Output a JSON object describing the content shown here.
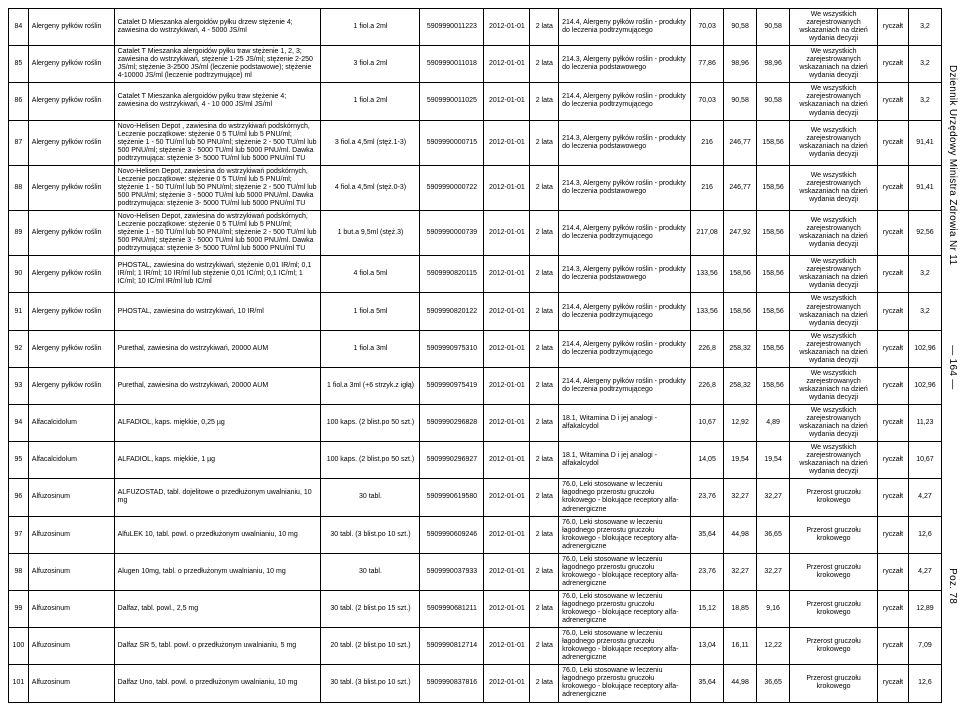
{
  "side": {
    "journal": "Dziennik Urzędowy Ministra Zdrowia Nr 11",
    "page": "— 164 —",
    "poz": "Poz. 78"
  },
  "note_std": "We wszystkich zarejestrowanych wskazaniach na dzień wydania decyzji",
  "note_prostate": "Przerost gruczołu krokowego",
  "ryczalt": "ryczałt",
  "rows": [
    {
      "n": "84",
      "cat": "Alergeny pyłków roślin",
      "desc": "Catalet D Mieszanka alergoidów pyłku drzew stężenie 4; zawiesina do wstrzykiwań, 4 - 5000 JS/ml",
      "form": "1 fiol.a 2ml",
      "code": "5909990011223",
      "date": "2012-01-01",
      "per": "2 lata",
      "ind": "214.4, Alergeny pyłków roślin - produkty do leczenia podtrzymującego",
      "a": "70,03",
      "b": "90,58",
      "c": "90,58",
      "note": "std",
      "r": "ryczałt",
      "v": "3,2"
    },
    {
      "n": "85",
      "cat": "Alergeny pyłków roślin",
      "desc": "Catalet T Mieszanka alergoidów pyłku traw stężenie 1, 2, 3; zawiesina do wstrzykiwań, stężenie 1-25 JS/ml; stężenie 2-250 JS/ml; stężenie 3-2500 JS/ml (leczenie podstawowe); stężenie 4-10000 JS/ml (leczenie podtrzymujące) ml",
      "form": "3 fiol.a 2ml",
      "code": "5909990011018",
      "date": "2012-01-01",
      "per": "2 lata",
      "ind": "214.3, Alergeny pyłków roślin - produkty do leczenia podstawowego",
      "a": "77,86",
      "b": "98,96",
      "c": "98,96",
      "note": "std",
      "r": "ryczałt",
      "v": "3,2"
    },
    {
      "n": "86",
      "cat": "Alergeny pyłków roślin",
      "desc": "Catalet T Mieszanka alergoidów pyłku traw stężenie 4; zawiesina do wstrzykiwań, 4 - 10 000 JS/ml JS/ml",
      "form": "1 fiol.a 2ml",
      "code": "5909990011025",
      "date": "2012-01-01",
      "per": "2 lata",
      "ind": "214.4, Alergeny pyłków roślin - produkty do leczenia podtrzymującego",
      "a": "70,03",
      "b": "90,58",
      "c": "90,58",
      "note": "std",
      "r": "ryczałt",
      "v": "3,2"
    },
    {
      "n": "87",
      "cat": "Alergeny pyłków roślin",
      "desc": "Novo-Helisen Depot , zawiesina do wstrzykiwań podskórnych, Leczenie początkowe: stężenie 0 5 TU/ml lub 5 PNU/ml; stężenie 1 - 50 TU/ml lub 50 PNU/ml; stężenie 2 - 500 TU/ml lub 500 PNU/ml; stężenie 3 - 5000 TU/ml lub 5000 PNU/ml. Dawka podtrzymująca: stężenie 3- 5000 TU/ml lub 5000 PNU/ml TU",
      "form": "3 fiol.a 4,5ml (stęż.1-3)",
      "code": "5909990000715",
      "date": "2012-01-01",
      "per": "2 lata",
      "ind": "214.3, Alergeny pyłków roślin - produkty do leczenia podstawowego",
      "a": "216",
      "b": "246,77",
      "c": "158,56",
      "note": "std",
      "r": "ryczałt",
      "v": "91,41"
    },
    {
      "n": "88",
      "cat": "Alergeny pyłków roślin",
      "desc": "Novo-Helisen Depot, zawiesina do wstrzykiwań podskórnych, Leczenie początkowe: stężenie 0 5 TU/ml lub 5 PNU/ml; stężenie 1 - 50 TU/ml lub 50 PNU/ml; stężenie 2 - 500 TU/ml lub 500 PNU/ml; stężenie 3 - 5000 TU/ml lub 5000 PNU/ml. Dawka podtrzymująca: stężenie 3- 5000 TU/ml lub 5000 PNU/ml TU",
      "form": "4 fiol.a 4,5ml (stęż.0-3)",
      "code": "5909990000722",
      "date": "2012-01-01",
      "per": "2 lata",
      "ind": "214.3, Alergeny pyłków roślin - produkty do leczenia podstawowego",
      "a": "216",
      "b": "246,77",
      "c": "158,56",
      "note": "std",
      "r": "ryczałt",
      "v": "91,41"
    },
    {
      "n": "89",
      "cat": "Alergeny pyłków roślin",
      "desc": "Novo-Helisen Depot, zawiesina do wstrzykiwań podskórnych, Leczenie początkowe: stężenie 0 5 TU/ml lub 5 PNU/ml; stężenie 1 - 50 TU/ml lub 50 PNU/ml; stężenie 2 - 500 TU/ml lub 500 PNU/ml; stężenie 3 - 5000 TU/ml lub 5000 PNU/ml. Dawka podtrzymująca: stężenie 3- 5000 TU/ml lub 5000 PNU/ml TU",
      "form": "1 but.a 9,5ml (stęż.3)",
      "code": "5909990000739",
      "date": "2012-01-01",
      "per": "2 lata",
      "ind": "214.4, Alergeny pyłków roślin - produkty do leczenia podtrzymującego",
      "a": "217,08",
      "b": "247,92",
      "c": "158,56",
      "note": "std",
      "r": "ryczałt",
      "v": "92,56"
    },
    {
      "n": "90",
      "cat": "Alergeny pyłków roślin",
      "desc": "PHOSTAL, zawiesina do wstrzykiwań, stężenie 0,01 IR/ml; 0,1 IR/ml; 1 IR/ml; 10 IR/ml lub stężenie 0,01 IC/ml; 0,1 IC/ml; 1 IC/ml; 10 IC/ml IR/ml lub IC/ml",
      "form": "4 fiol.a 5ml",
      "code": "5909990820115",
      "date": "2012-01-01",
      "per": "2 lata",
      "ind": "214.3, Alergeny pyłków roślin - produkty do leczenia podstawowego",
      "a": "133,56",
      "b": "158,56",
      "c": "158,56",
      "note": "std",
      "r": "ryczałt",
      "v": "3,2"
    },
    {
      "n": "91",
      "cat": "Alergeny pyłków roślin",
      "desc": "PHOSTAL, zawiesina do wstrzykiwań, 10 IR/ml",
      "form": "1 fiol.a 5ml",
      "code": "5909990820122",
      "date": "2012-01-01",
      "per": "2 lata",
      "ind": "214.4, Alergeny pyłków roślin - produkty do leczenia podtrzymującego",
      "a": "133,56",
      "b": "158,56",
      "c": "158,56",
      "note": "std",
      "r": "ryczałt",
      "v": "3,2"
    },
    {
      "n": "92",
      "cat": "Alergeny pyłków roślin",
      "desc": "Purethal, zawiesina do wstrzykiwań, 20000 AUM",
      "form": "1 fiol.a 3ml",
      "code": "5909990975310",
      "date": "2012-01-01",
      "per": "2 lata",
      "ind": "214.4, Alergeny pyłków roślin - produkty do leczenia podtrzymującego",
      "a": "226,8",
      "b": "258,32",
      "c": "158,56",
      "note": "std",
      "r": "ryczałt",
      "v": "102,96"
    },
    {
      "n": "93",
      "cat": "Alergeny pyłków roślin",
      "desc": "Purethal, zawiesina do wstrzykiwań, 20000 AUM",
      "form": "1 fiol.a 3ml (+6 strzyk.z igłą)",
      "code": "5909990975419",
      "date": "2012-01-01",
      "per": "2 lata",
      "ind": "214.4, Alergeny pyłków roślin - produkty do leczenia podtrzymującego",
      "a": "226,8",
      "b": "258,32",
      "c": "158,56",
      "note": "std",
      "r": "ryczałt",
      "v": "102,96"
    },
    {
      "n": "94",
      "cat": "Alfacalcidolum",
      "desc": "ALFADIOL, kaps. miękkie, 0,25 µg",
      "form": "100 kaps. (2 blist.po 50 szt.)",
      "code": "5909990296828",
      "date": "2012-01-01",
      "per": "2 lata",
      "ind": "18.1, Witamina D i jej analogi - alfakalcydol",
      "a": "10,67",
      "b": "12,92",
      "c": "4,89",
      "note": "std",
      "r": "ryczałt",
      "v": "11,23"
    },
    {
      "n": "95",
      "cat": "Alfacalcidolum",
      "desc": "ALFADIOL, kaps. miękkie, 1 µg",
      "form": "100 kaps. (2 blist.po 50 szt.)",
      "code": "5909990296927",
      "date": "2012-01-01",
      "per": "2 lata",
      "ind": "18.1, Witamina D i jej analogi - alfakalcydol",
      "a": "14,05",
      "b": "19,54",
      "c": "19,54",
      "note": "std",
      "r": "ryczałt",
      "v": "10,67"
    },
    {
      "n": "96",
      "cat": "Alfuzosinum",
      "desc": "ALFUZOSTAD, tabl. dojelitowe o przedłużonym uwalnianiu, 10 mg",
      "form": "30 tabl.",
      "code": "5909990619580",
      "date": "2012-01-01",
      "per": "2 lata",
      "ind": "76.0, Leki stosowane w leczeniu łagodnego przerostu gruczołu krokowego - blokujące receptory alfa-adrenergiczne",
      "a": "23,76",
      "b": "32,27",
      "c": "32,27",
      "note": "prostate",
      "r": "ryczałt",
      "v": "4,27"
    },
    {
      "n": "97",
      "cat": "Alfuzosinum",
      "desc": "AlfuLEK 10, tabl. powl. o przedłużonym uwalnianiu, 10 mg",
      "form": "30 tabl. (3 blist.po 10 szt.)",
      "code": "5909990609246",
      "date": "2012-01-01",
      "per": "2 lata",
      "ind": "76.0, Leki stosowane w leczeniu łagodnego przerostu gruczołu krokowego - blokujące receptory alfa-adrenergiczne",
      "a": "35,64",
      "b": "44,98",
      "c": "36,65",
      "note": "prostate",
      "r": "ryczałt",
      "v": "12,6"
    },
    {
      "n": "98",
      "cat": "Alfuzosinum",
      "desc": "Alugen 10mg, tabl. o przedłużonym uwalnianiu, 10 mg",
      "form": "30 tabl.",
      "code": "5909990037933",
      "date": "2012-01-01",
      "per": "2 lata",
      "ind": "76.0, Leki stosowane w leczeniu łagodnego przerostu gruczołu krokowego - blokujące receptory alfa-adrenergiczne",
      "a": "23,76",
      "b": "32,27",
      "c": "32,27",
      "note": "prostate",
      "r": "ryczałt",
      "v": "4,27"
    },
    {
      "n": "99",
      "cat": "Alfuzosinum",
      "desc": "Dalfaz, tabl. powl., 2,5 mg",
      "form": "30 tabl. (2 blist.po 15 szt.)",
      "code": "5909990681211",
      "date": "2012-01-01",
      "per": "2 lata",
      "ind": "76.0, Leki stosowane w leczeniu łagodnego przerostu gruczołu krokowego - blokujące receptory alfa-adrenergiczne",
      "a": "15,12",
      "b": "18,85",
      "c": "9,16",
      "note": "prostate",
      "r": "ryczałt",
      "v": "12,89"
    },
    {
      "n": "100",
      "cat": "Alfuzosinum",
      "desc": "Dalfaz SR 5, tabl. powl. o przedłużonym uwalnianiu, 5 mg",
      "form": "20 tabl. (2 blist.po 10 szt.)",
      "code": "5909990812714",
      "date": "2012-01-01",
      "per": "2 lata",
      "ind": "76.0, Leki stosowane w leczeniu łagodnego przerostu gruczołu krokowego - blokujące receptory alfa-adrenergiczne",
      "a": "13,04",
      "b": "16,11",
      "c": "12,22",
      "note": "prostate",
      "r": "ryczałt",
      "v": "7,09"
    },
    {
      "n": "101",
      "cat": "Alfuzosinum",
      "desc": "Dalfaz Uno, tabl. powl. o przedłużonym uwalnianiu, 10 mg",
      "form": "30 tabl. (3 blist.po 10 szt.)",
      "code": "5909990837816",
      "date": "2012-01-01",
      "per": "2 lata",
      "ind": "76.0, Leki stosowane w leczeniu łagodnego przerostu gruczołu krokowego - blokujące receptory alfa-adrenergiczne",
      "a": "35,64",
      "b": "44,98",
      "c": "36,65",
      "note": "prostate",
      "r": "ryczałt",
      "v": "12,6"
    }
  ]
}
